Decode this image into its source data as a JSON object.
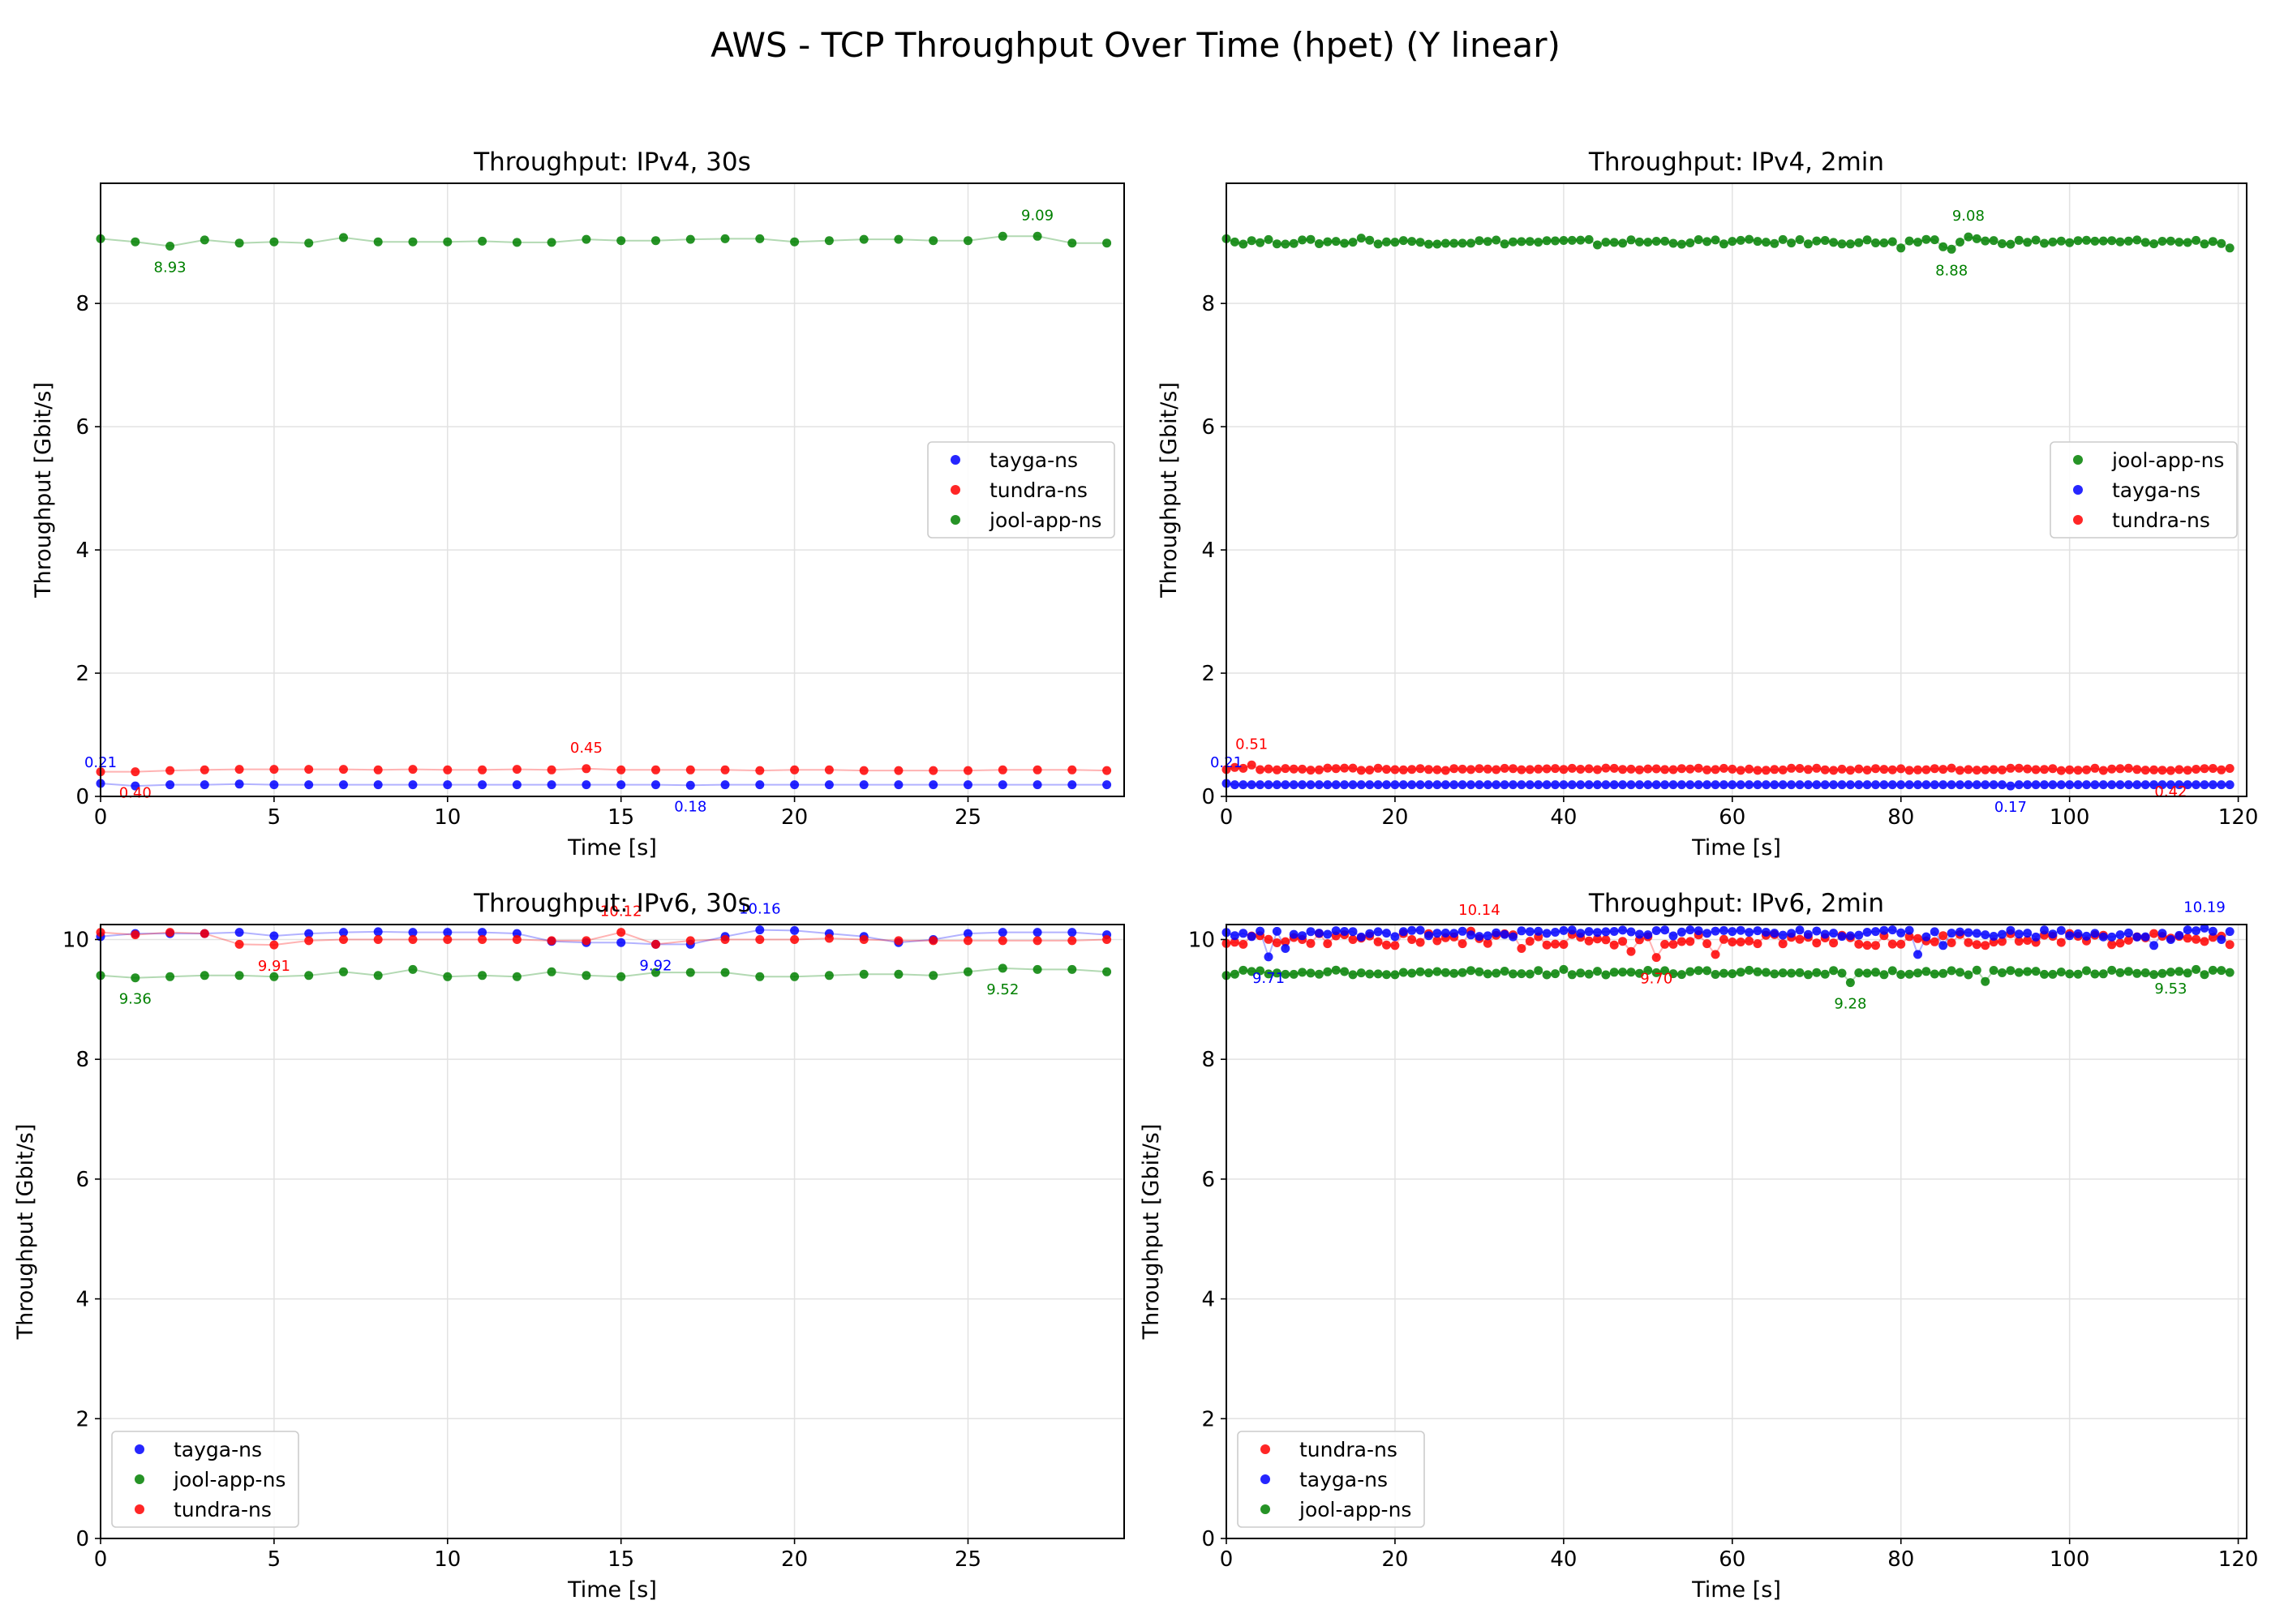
{
  "title": "AWS - TCP Throughput Over Time (hpet) (Y linear)",
  "colors": {
    "tayga-ns": "#0000ff",
    "tundra-ns": "#ff0000",
    "jool-app-ns": "#008000"
  },
  "chart_data": [
    {
      "type": "scatter",
      "title": "Throughput: IPv4, 30s",
      "xlabel": "Time [s]",
      "ylabel": "Throughput [Gbit/s]",
      "xlim": [
        0,
        29.5
      ],
      "ylim": [
        0,
        9.95
      ],
      "xticks": [
        0,
        5,
        10,
        15,
        20,
        25
      ],
      "yticks": [
        0,
        2,
        4,
        6,
        8
      ],
      "legend_loc": "center-right",
      "legend": [
        "tayga-ns",
        "tundra-ns",
        "jool-app-ns"
      ],
      "x": [
        0,
        1,
        2,
        3,
        4,
        5,
        6,
        7,
        8,
        9,
        10,
        11,
        12,
        13,
        14,
        15,
        16,
        17,
        18,
        19,
        20,
        21,
        22,
        23,
        24,
        25,
        26,
        27,
        28,
        29
      ],
      "series": [
        {
          "name": "tayga-ns",
          "values": [
            0.21,
            0.17,
            0.19,
            0.19,
            0.2,
            0.19,
            0.19,
            0.19,
            0.19,
            0.19,
            0.19,
            0.19,
            0.19,
            0.19,
            0.19,
            0.19,
            0.19,
            0.18,
            0.19,
            0.19,
            0.19,
            0.19,
            0.19,
            0.19,
            0.19,
            0.19,
            0.19,
            0.19,
            0.19,
            0.19
          ]
        },
        {
          "name": "tundra-ns",
          "values": [
            0.4,
            0.4,
            0.42,
            0.43,
            0.44,
            0.44,
            0.44,
            0.44,
            0.43,
            0.44,
            0.43,
            0.43,
            0.44,
            0.43,
            0.45,
            0.43,
            0.43,
            0.43,
            0.43,
            0.42,
            0.43,
            0.43,
            0.42,
            0.42,
            0.42,
            0.42,
            0.43,
            0.43,
            0.43,
            0.42
          ]
        },
        {
          "name": "jool-app-ns",
          "values": [
            9.05,
            9.0,
            8.93,
            9.03,
            8.98,
            9.0,
            8.98,
            9.07,
            9.0,
            9.0,
            9.0,
            9.01,
            8.99,
            8.99,
            9.04,
            9.02,
            9.02,
            9.04,
            9.05,
            9.05,
            9.0,
            9.02,
            9.04,
            9.04,
            9.02,
            9.02,
            9.09,
            9.09,
            8.98,
            8.98
          ]
        }
      ],
      "annotations": [
        {
          "series": "tayga-ns",
          "x": 0,
          "y": 0.21,
          "text": "0.21",
          "pos": "above"
        },
        {
          "series": "tundra-ns",
          "x": 1,
          "y": 0.4,
          "text": "0.40",
          "pos": "below"
        },
        {
          "series": "tundra-ns",
          "x": 14,
          "y": 0.45,
          "text": "0.45",
          "pos": "above"
        },
        {
          "series": "tayga-ns",
          "x": 17,
          "y": 0.18,
          "text": "0.18",
          "pos": "below"
        },
        {
          "series": "jool-app-ns",
          "x": 2,
          "y": 8.93,
          "text": "8.93",
          "pos": "below"
        },
        {
          "series": "jool-app-ns",
          "x": 27,
          "y": 9.09,
          "text": "9.09",
          "pos": "above"
        }
      ]
    },
    {
      "type": "scatter",
      "title": "Throughput: IPv4, 2min",
      "xlabel": "Time [s]",
      "ylabel": "Throughput [Gbit/s]",
      "xlim": [
        0,
        121
      ],
      "ylim": [
        0,
        9.95
      ],
      "xticks": [
        0,
        20,
        40,
        60,
        80,
        100,
        120
      ],
      "yticks": [
        0,
        2,
        4,
        6,
        8
      ],
      "legend_loc": "center-right",
      "legend": [
        "jool-app-ns",
        "tayga-ns",
        "tundra-ns"
      ],
      "x_start": 0,
      "x_step": 1,
      "n_points": 120,
      "series": [
        {
          "name": "jool-app-ns",
          "base": 9.0,
          "noise": 0.04,
          "points": [
            [
              0,
              9.05
            ],
            [
              16,
              9.06
            ],
            [
              44,
              8.95
            ],
            [
              80,
              8.9
            ],
            [
              85,
              8.92
            ],
            [
              86,
              8.88
            ],
            [
              88,
              9.08
            ],
            [
              89,
              9.05
            ],
            [
              119,
              8.9
            ]
          ]
        },
        {
          "name": "tayga-ns",
          "base": 0.19,
          "noise": 0.0,
          "points": [
            [
              0,
              0.21
            ],
            [
              93,
              0.17
            ]
          ]
        },
        {
          "name": "tundra-ns",
          "base": 0.44,
          "noise": 0.02,
          "points": [
            [
              1,
              0.47
            ],
            [
              3,
              0.51
            ],
            [
              112,
              0.42
            ]
          ]
        }
      ],
      "annotations": [
        {
          "series": "tayga-ns",
          "x": 0,
          "y": 0.21,
          "text": "0.21",
          "pos": "above"
        },
        {
          "series": "tundra-ns",
          "x": 3,
          "y": 0.51,
          "text": "0.51",
          "pos": "above"
        },
        {
          "series": "tayga-ns",
          "x": 93,
          "y": 0.17,
          "text": "0.17",
          "pos": "below"
        },
        {
          "series": "tundra-ns",
          "x": 112,
          "y": 0.42,
          "text": "0.42",
          "pos": "below"
        },
        {
          "series": "jool-app-ns",
          "x": 86,
          "y": 8.88,
          "text": "8.88",
          "pos": "below"
        },
        {
          "series": "jool-app-ns",
          "x": 88,
          "y": 9.08,
          "text": "9.08",
          "pos": "above"
        }
      ]
    },
    {
      "type": "scatter",
      "title": "Throughput: IPv6, 30s",
      "xlabel": "Time [s]",
      "ylabel": "Throughput [Gbit/s]",
      "xlim": [
        0,
        29.5
      ],
      "ylim": [
        0,
        10.25
      ],
      "xticks": [
        0,
        5,
        10,
        15,
        20,
        25
      ],
      "yticks": [
        0,
        2,
        4,
        6,
        8,
        10
      ],
      "legend_loc": "lower-left",
      "legend": [
        "tayga-ns",
        "jool-app-ns",
        "tundra-ns"
      ],
      "x": [
        0,
        1,
        2,
        3,
        4,
        5,
        6,
        7,
        8,
        9,
        10,
        11,
        12,
        13,
        14,
        15,
        16,
        17,
        18,
        19,
        20,
        21,
        22,
        23,
        24,
        25,
        26,
        27,
        28,
        29
      ],
      "series": [
        {
          "name": "tayga-ns",
          "values": [
            10.05,
            10.1,
            10.1,
            10.1,
            10.12,
            10.06,
            10.1,
            10.12,
            10.13,
            10.12,
            10.12,
            10.12,
            10.1,
            9.97,
            9.95,
            9.95,
            9.92,
            9.92,
            10.05,
            10.16,
            10.15,
            10.1,
            10.05,
            9.95,
            10.0,
            10.1,
            10.12,
            10.12,
            10.12,
            10.08
          ]
        },
        {
          "name": "tundra-ns",
          "values": [
            10.12,
            10.08,
            10.12,
            10.1,
            9.92,
            9.91,
            9.98,
            10.0,
            10.0,
            10.0,
            10.0,
            10.0,
            10.0,
            9.98,
            9.98,
            10.12,
            9.92,
            9.98,
            10.0,
            10.0,
            10.0,
            10.02,
            10.0,
            9.98,
            9.98,
            9.98,
            9.98,
            9.98,
            9.98,
            10.0
          ]
        },
        {
          "name": "jool-app-ns",
          "values": [
            9.4,
            9.36,
            9.38,
            9.4,
            9.4,
            9.38,
            9.4,
            9.46,
            9.4,
            9.5,
            9.38,
            9.4,
            9.38,
            9.46,
            9.4,
            9.38,
            9.45,
            9.45,
            9.45,
            9.38,
            9.38,
            9.4,
            9.42,
            9.42,
            9.4,
            9.46,
            9.52,
            9.5,
            9.5,
            9.46
          ]
        }
      ],
      "annotations": [
        {
          "series": "jool-app-ns",
          "x": 1,
          "y": 9.36,
          "text": "9.36",
          "pos": "below"
        },
        {
          "series": "tundra-ns",
          "x": 5,
          "y": 9.91,
          "text": "9.91",
          "pos": "below"
        },
        {
          "series": "tundra-ns",
          "x": 15,
          "y": 10.12,
          "text": "10.12",
          "pos": "above"
        },
        {
          "series": "tayga-ns",
          "x": 16,
          "y": 9.92,
          "text": "9.92",
          "pos": "below"
        },
        {
          "series": "tayga-ns",
          "x": 19,
          "y": 10.16,
          "text": "10.16",
          "pos": "above"
        },
        {
          "series": "jool-app-ns",
          "x": 26,
          "y": 9.52,
          "text": "9.52",
          "pos": "below"
        }
      ]
    },
    {
      "type": "scatter",
      "title": "Throughput: IPv6, 2min",
      "xlabel": "Time [s]",
      "ylabel": "Throughput [Gbit/s]",
      "xlim": [
        0,
        121
      ],
      "ylim": [
        0,
        10.25
      ],
      "xticks": [
        0,
        20,
        40,
        60,
        80,
        100,
        120
      ],
      "yticks": [
        0,
        2,
        4,
        6,
        8,
        10
      ],
      "legend_loc": "lower-left",
      "legend": [
        "tundra-ns",
        "tayga-ns",
        "jool-app-ns"
      ],
      "x_start": 0,
      "x_step": 1,
      "n_points": 120,
      "series": [
        {
          "name": "tundra-ns",
          "base": 10.0,
          "noise": 0.1,
          "points": [
            [
              9,
              10.0
            ],
            [
              20,
              9.9
            ],
            [
              29,
              10.14
            ],
            [
              35,
              9.85
            ],
            [
              48,
              9.8
            ],
            [
              51,
              9.7
            ],
            [
              58,
              9.75
            ],
            [
              100,
              10.1
            ],
            [
              110,
              10.1
            ]
          ]
        },
        {
          "name": "tayga-ns",
          "base": 10.1,
          "noise": 0.06,
          "points": [
            [
              3,
              10.05
            ],
            [
              5,
              9.71
            ],
            [
              7,
              9.85
            ],
            [
              40,
              10.15
            ],
            [
              82,
              9.75
            ],
            [
              85,
              9.9
            ],
            [
              110,
              9.9
            ],
            [
              112,
              10.0
            ],
            [
              116,
              10.19
            ],
            [
              118,
              10.0
            ]
          ]
        },
        {
          "name": "jool-app-ns",
          "base": 9.45,
          "noise": 0.04,
          "points": [
            [
              0,
              9.4
            ],
            [
              40,
              9.5
            ],
            [
              74,
              9.28
            ],
            [
              90,
              9.3
            ],
            [
              115,
              9.5
            ]
          ]
        }
      ],
      "annotations": [
        {
          "series": "tayga-ns",
          "x": 5,
          "y": 9.71,
          "text": "9.71",
          "pos": "below"
        },
        {
          "series": "tundra-ns",
          "x": 30,
          "y": 10.14,
          "text": "10.14",
          "pos": "above"
        },
        {
          "series": "tundra-ns",
          "x": 51,
          "y": 9.7,
          "text": "9.70",
          "pos": "below"
        },
        {
          "series": "jool-app-ns",
          "x": 74,
          "y": 9.28,
          "text": "9.28",
          "pos": "below"
        },
        {
          "series": "jool-app-ns",
          "x": 112,
          "y": 9.53,
          "text": "9.53",
          "pos": "below"
        },
        {
          "series": "tayga-ns",
          "x": 116,
          "y": 10.19,
          "text": "10.19",
          "pos": "above"
        }
      ]
    }
  ]
}
